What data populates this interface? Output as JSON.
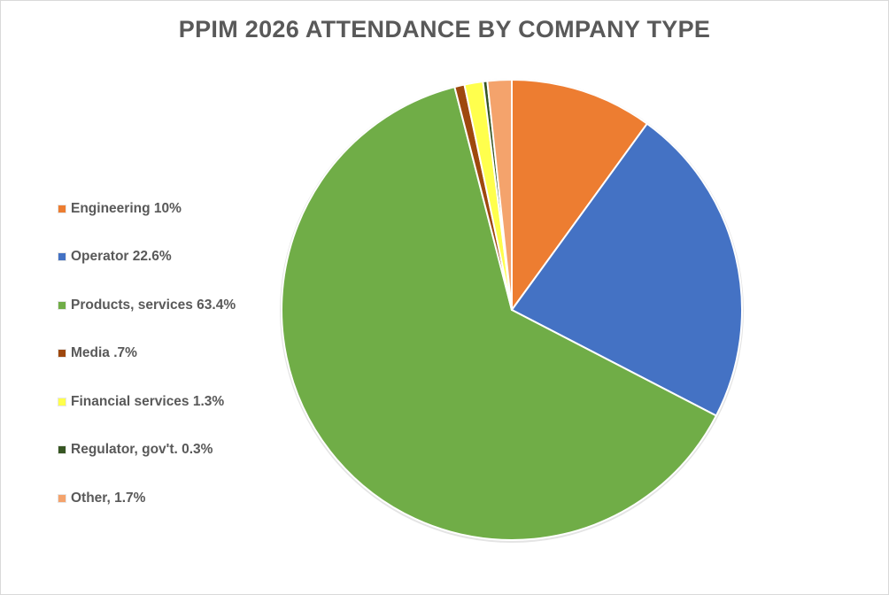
{
  "chart_data": {
    "type": "pie",
    "title": "PPIM 2026 ATTENDANCE BY COMPANY TYPE",
    "legend_position": "left",
    "start_angle": "top, clockwise",
    "slices": [
      {
        "name": "Engineering",
        "label": "Engineering 10%",
        "value": 10,
        "color": "#ED7D31"
      },
      {
        "name": "Operator",
        "label": "Operator 22.6%",
        "value": 22.6,
        "color": "#4472C4"
      },
      {
        "name": "Products, services",
        "label": "Products, services 63.4%",
        "value": 63.4,
        "color": "#70AD47"
      },
      {
        "name": "Media",
        "label": "Media .7%",
        "value": 0.7,
        "color": "#9E480E"
      },
      {
        "name": "Financial services",
        "label": "Financial services 1.3%",
        "value": 1.3,
        "color": "#FFFF4D"
      },
      {
        "name": "Regulator, gov't.",
        "label": "Regulator, gov't. 0.3%",
        "value": 0.3,
        "color": "#375623"
      },
      {
        "name": "Other",
        "label": "Other, 1.7%",
        "value": 1.7,
        "color": "#F4A36C"
      }
    ]
  }
}
